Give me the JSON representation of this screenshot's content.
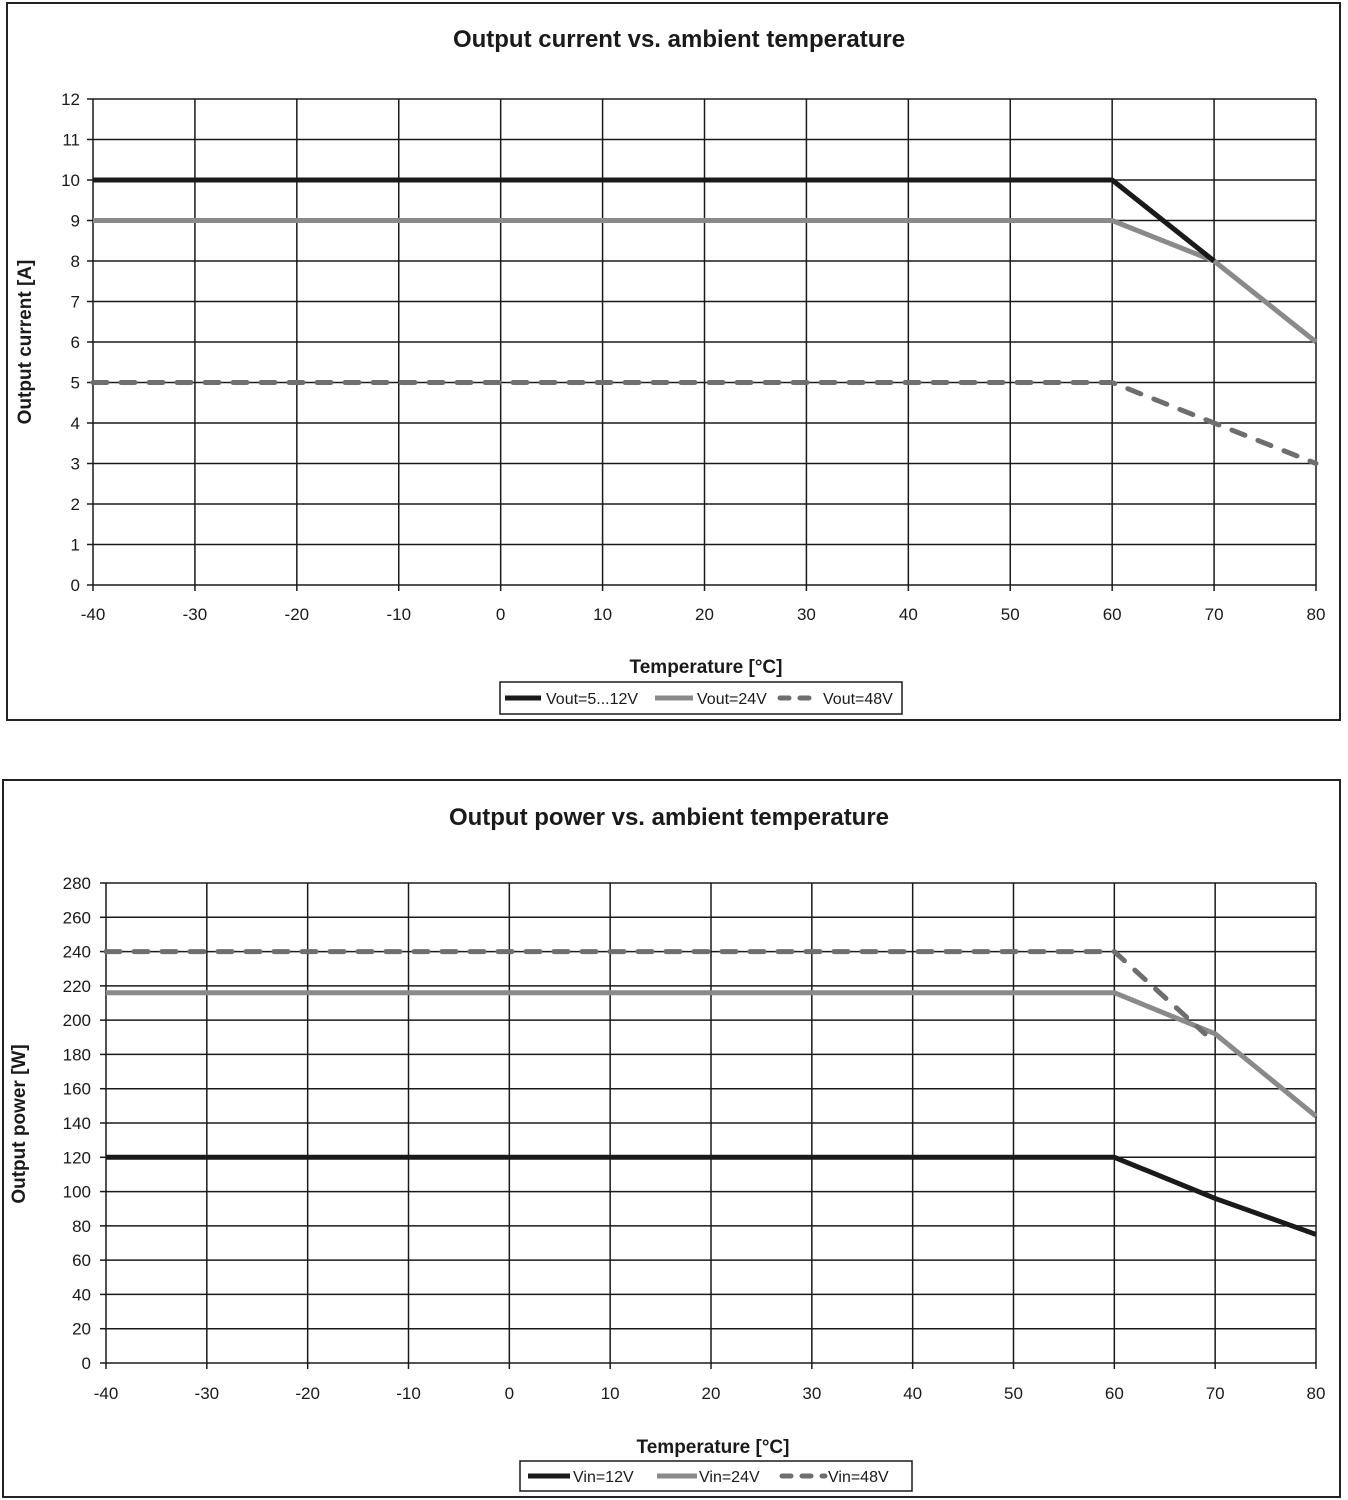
{
  "chart_data": [
    {
      "type": "line",
      "title": "Output current vs. ambient temperature",
      "xlabel": "Temperature [°C]",
      "ylabel": "Output current [A]",
      "xlim": [
        -40,
        80
      ],
      "ylim": [
        0,
        12
      ],
      "xticks": [
        -40,
        -30,
        -20,
        -10,
        0,
        10,
        20,
        30,
        40,
        50,
        60,
        70,
        80
      ],
      "yticks": [
        0,
        1,
        2,
        3,
        4,
        5,
        6,
        7,
        8,
        9,
        10,
        11,
        12
      ],
      "grid": true,
      "legend_position": "bottom",
      "series": [
        {
          "name": "Vout=5...12V",
          "color": "#1a1a1a",
          "style": "solid",
          "x": [
            -40,
            60,
            70
          ],
          "y": [
            10,
            10,
            8
          ]
        },
        {
          "name": "Vout=24V",
          "color": "#8a8a8a",
          "style": "solid",
          "x": [
            -40,
            60,
            70,
            80
          ],
          "y": [
            9,
            9,
            8,
            6
          ]
        },
        {
          "name": "Vout=48V",
          "color": "#6e6e6e",
          "style": "dashed",
          "x": [
            -40,
            60,
            70,
            80
          ],
          "y": [
            5,
            5,
            4,
            3
          ]
        }
      ]
    },
    {
      "type": "line",
      "title": "Output power vs. ambient temperature",
      "xlabel": "Temperature [°C]",
      "ylabel": "Output power [W]",
      "xlim": [
        -40,
        80
      ],
      "ylim": [
        0,
        280
      ],
      "xticks": [
        -40,
        -30,
        -20,
        -10,
        0,
        10,
        20,
        30,
        40,
        50,
        60,
        70,
        80
      ],
      "yticks": [
        0,
        20,
        40,
        60,
        80,
        100,
        120,
        140,
        160,
        180,
        200,
        220,
        240,
        260,
        280
      ],
      "grid": true,
      "legend_position": "bottom",
      "series": [
        {
          "name": "Vin=12V",
          "color": "#1a1a1a",
          "style": "solid",
          "x": [
            -40,
            60,
            70,
            80
          ],
          "y": [
            120,
            120,
            96,
            75
          ]
        },
        {
          "name": "Vin=24V",
          "color": "#8a8a8a",
          "style": "solid",
          "x": [
            -40,
            60,
            70,
            80
          ],
          "y": [
            216,
            216,
            192,
            144
          ]
        },
        {
          "name": "Vin=48V",
          "color": "#6e6e6e",
          "style": "dashed",
          "x": [
            -40,
            60,
            69
          ],
          "y": [
            240,
            240,
            192
          ]
        }
      ]
    }
  ]
}
